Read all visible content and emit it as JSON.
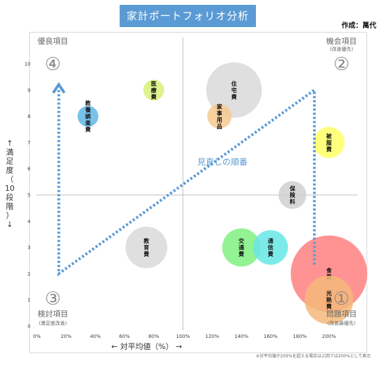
{
  "title": "家計ポートフォリオ分析",
  "author": "作成：萬代",
  "footnote": "※対平均値が200%を超える場合は上回では200%として表示",
  "chart_data": {
    "type": "scatter",
    "xlabel": "← 対平均値（%） →",
    "ylabel": [
      "↑",
      "満",
      "足",
      "度",
      "（",
      "10",
      "段",
      "階",
      "）",
      "↓"
    ],
    "xlim": [
      0,
      200
    ],
    "ylim": [
      0,
      10
    ],
    "x_ticks": [
      {
        "v": 0,
        "label": "0%"
      },
      {
        "v": 20,
        "label": "20%"
      },
      {
        "v": 40,
        "label": "40%"
      },
      {
        "v": 60,
        "label": "60%"
      },
      {
        "v": 80,
        "label": "80%"
      },
      {
        "v": 100,
        "label": "100%"
      },
      {
        "v": 120,
        "label": "120%"
      },
      {
        "v": 140,
        "label": "140%"
      },
      {
        "v": 160,
        "label": "160%"
      },
      {
        "v": 180,
        "label": "180%"
      },
      {
        "v": 200,
        "label": "200%"
      }
    ],
    "y_ticks": [
      0,
      1,
      2,
      3,
      4,
      5,
      6,
      7,
      8,
      9,
      10
    ],
    "divider_x": 100,
    "divider_y": 5,
    "points": [
      {
        "label": "医療費",
        "x": 80,
        "y": 9,
        "size": 6,
        "color": "#d9f07a"
      },
      {
        "label": "教養娯楽費",
        "x": 35,
        "y": 8,
        "size": 6,
        "color": "#5fb7e8"
      },
      {
        "label": "住宅費",
        "x": 135,
        "y": 9,
        "size": 16,
        "color": "#d9d9d9"
      },
      {
        "label": "家事用品",
        "x": 125,
        "y": 8,
        "size": 7,
        "color": "#f7c98f"
      },
      {
        "label": "被服費",
        "x": 200,
        "y": 7,
        "size": 9,
        "color": "#ffff66"
      },
      {
        "label": "保険料",
        "x": 175,
        "y": 5,
        "size": 8,
        "color": "#d0d0d0"
      },
      {
        "label": "教育費",
        "x": 75,
        "y": 3,
        "size": 12,
        "color": "#d9d9d9"
      },
      {
        "label": "交通費",
        "x": 140,
        "y": 3,
        "size": 11,
        "color": "#80f080"
      },
      {
        "label": "通信費",
        "x": 160,
        "y": 3,
        "size": 10,
        "color": "#66e6e6"
      },
      {
        "label": "食費",
        "x": 200,
        "y": 2,
        "size": 22,
        "color": "#ff8080"
      },
      {
        "label": "光熱費",
        "x": 200,
        "y": 1,
        "size": 14,
        "color": "#f5b87a"
      }
    ],
    "path": [
      {
        "x": 15,
        "y": 9
      },
      {
        "x": 15,
        "y": 2
      },
      {
        "x": 190,
        "y": 9
      },
      {
        "x": 190,
        "y": 2.3
      }
    ],
    "path_label": "見直しの順番",
    "quadrants": [
      {
        "num": "④",
        "name": "優良項目",
        "sub": ""
      },
      {
        "num": "②",
        "name": "機会項目",
        "sub": "(改善優先)"
      },
      {
        "num": "③",
        "name": "検討項目",
        "sub": "(満足度改善)"
      },
      {
        "num": "①",
        "name": "問題項目",
        "sub": "(改善最優先)"
      }
    ]
  }
}
